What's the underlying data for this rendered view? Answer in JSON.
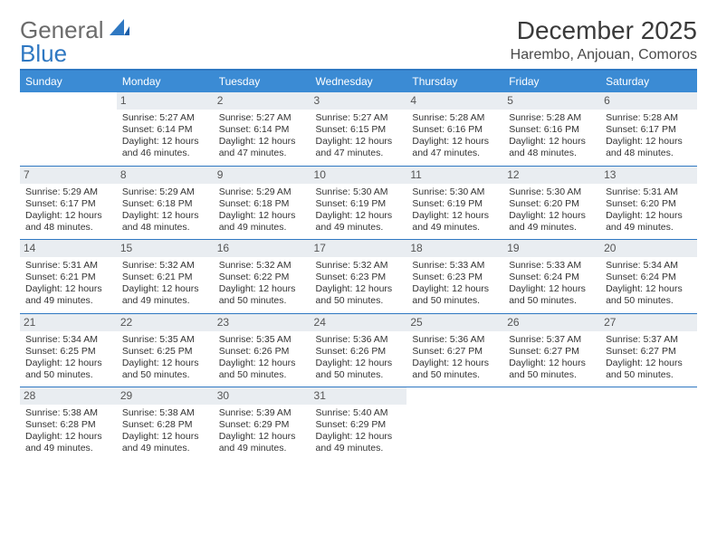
{
  "brand": {
    "part1": "General",
    "part2": "Blue"
  },
  "header": {
    "month": "December 2025",
    "location": "Harembo, Anjouan, Comoros"
  },
  "dow": [
    "Sunday",
    "Monday",
    "Tuesday",
    "Wednesday",
    "Thursday",
    "Friday",
    "Saturday"
  ],
  "colors": {
    "header_bg": "#3b8bd4",
    "rule": "#2f78c2",
    "daynum_bg": "#e9edf1",
    "text": "#333333",
    "brand_gray": "#6b6b6b",
    "brand_blue": "#2f78c2"
  },
  "weeks": [
    [
      {
        "n": "",
        "lines": []
      },
      {
        "n": "1",
        "lines": [
          "Sunrise: 5:27 AM",
          "Sunset: 6:14 PM",
          "Daylight: 12 hours and 46 minutes."
        ]
      },
      {
        "n": "2",
        "lines": [
          "Sunrise: 5:27 AM",
          "Sunset: 6:14 PM",
          "Daylight: 12 hours and 47 minutes."
        ]
      },
      {
        "n": "3",
        "lines": [
          "Sunrise: 5:27 AM",
          "Sunset: 6:15 PM",
          "Daylight: 12 hours and 47 minutes."
        ]
      },
      {
        "n": "4",
        "lines": [
          "Sunrise: 5:28 AM",
          "Sunset: 6:16 PM",
          "Daylight: 12 hours and 47 minutes."
        ]
      },
      {
        "n": "5",
        "lines": [
          "Sunrise: 5:28 AM",
          "Sunset: 6:16 PM",
          "Daylight: 12 hours and 48 minutes."
        ]
      },
      {
        "n": "6",
        "lines": [
          "Sunrise: 5:28 AM",
          "Sunset: 6:17 PM",
          "Daylight: 12 hours and 48 minutes."
        ]
      }
    ],
    [
      {
        "n": "7",
        "lines": [
          "Sunrise: 5:29 AM",
          "Sunset: 6:17 PM",
          "Daylight: 12 hours and 48 minutes."
        ]
      },
      {
        "n": "8",
        "lines": [
          "Sunrise: 5:29 AM",
          "Sunset: 6:18 PM",
          "Daylight: 12 hours and 48 minutes."
        ]
      },
      {
        "n": "9",
        "lines": [
          "Sunrise: 5:29 AM",
          "Sunset: 6:18 PM",
          "Daylight: 12 hours and 49 minutes."
        ]
      },
      {
        "n": "10",
        "lines": [
          "Sunrise: 5:30 AM",
          "Sunset: 6:19 PM",
          "Daylight: 12 hours and 49 minutes."
        ]
      },
      {
        "n": "11",
        "lines": [
          "Sunrise: 5:30 AM",
          "Sunset: 6:19 PM",
          "Daylight: 12 hours and 49 minutes."
        ]
      },
      {
        "n": "12",
        "lines": [
          "Sunrise: 5:30 AM",
          "Sunset: 6:20 PM",
          "Daylight: 12 hours and 49 minutes."
        ]
      },
      {
        "n": "13",
        "lines": [
          "Sunrise: 5:31 AM",
          "Sunset: 6:20 PM",
          "Daylight: 12 hours and 49 minutes."
        ]
      }
    ],
    [
      {
        "n": "14",
        "lines": [
          "Sunrise: 5:31 AM",
          "Sunset: 6:21 PM",
          "Daylight: 12 hours and 49 minutes."
        ]
      },
      {
        "n": "15",
        "lines": [
          "Sunrise: 5:32 AM",
          "Sunset: 6:21 PM",
          "Daylight: 12 hours and 49 minutes."
        ]
      },
      {
        "n": "16",
        "lines": [
          "Sunrise: 5:32 AM",
          "Sunset: 6:22 PM",
          "Daylight: 12 hours and 50 minutes."
        ]
      },
      {
        "n": "17",
        "lines": [
          "Sunrise: 5:32 AM",
          "Sunset: 6:23 PM",
          "Daylight: 12 hours and 50 minutes."
        ]
      },
      {
        "n": "18",
        "lines": [
          "Sunrise: 5:33 AM",
          "Sunset: 6:23 PM",
          "Daylight: 12 hours and 50 minutes."
        ]
      },
      {
        "n": "19",
        "lines": [
          "Sunrise: 5:33 AM",
          "Sunset: 6:24 PM",
          "Daylight: 12 hours and 50 minutes."
        ]
      },
      {
        "n": "20",
        "lines": [
          "Sunrise: 5:34 AM",
          "Sunset: 6:24 PM",
          "Daylight: 12 hours and 50 minutes."
        ]
      }
    ],
    [
      {
        "n": "21",
        "lines": [
          "Sunrise: 5:34 AM",
          "Sunset: 6:25 PM",
          "Daylight: 12 hours and 50 minutes."
        ]
      },
      {
        "n": "22",
        "lines": [
          "Sunrise: 5:35 AM",
          "Sunset: 6:25 PM",
          "Daylight: 12 hours and 50 minutes."
        ]
      },
      {
        "n": "23",
        "lines": [
          "Sunrise: 5:35 AM",
          "Sunset: 6:26 PM",
          "Daylight: 12 hours and 50 minutes."
        ]
      },
      {
        "n": "24",
        "lines": [
          "Sunrise: 5:36 AM",
          "Sunset: 6:26 PM",
          "Daylight: 12 hours and 50 minutes."
        ]
      },
      {
        "n": "25",
        "lines": [
          "Sunrise: 5:36 AM",
          "Sunset: 6:27 PM",
          "Daylight: 12 hours and 50 minutes."
        ]
      },
      {
        "n": "26",
        "lines": [
          "Sunrise: 5:37 AM",
          "Sunset: 6:27 PM",
          "Daylight: 12 hours and 50 minutes."
        ]
      },
      {
        "n": "27",
        "lines": [
          "Sunrise: 5:37 AM",
          "Sunset: 6:27 PM",
          "Daylight: 12 hours and 50 minutes."
        ]
      }
    ],
    [
      {
        "n": "28",
        "lines": [
          "Sunrise: 5:38 AM",
          "Sunset: 6:28 PM",
          "Daylight: 12 hours and 49 minutes."
        ]
      },
      {
        "n": "29",
        "lines": [
          "Sunrise: 5:38 AM",
          "Sunset: 6:28 PM",
          "Daylight: 12 hours and 49 minutes."
        ]
      },
      {
        "n": "30",
        "lines": [
          "Sunrise: 5:39 AM",
          "Sunset: 6:29 PM",
          "Daylight: 12 hours and 49 minutes."
        ]
      },
      {
        "n": "31",
        "lines": [
          "Sunrise: 5:40 AM",
          "Sunset: 6:29 PM",
          "Daylight: 12 hours and 49 minutes."
        ]
      },
      {
        "n": "",
        "lines": []
      },
      {
        "n": "",
        "lines": []
      },
      {
        "n": "",
        "lines": []
      }
    ]
  ]
}
